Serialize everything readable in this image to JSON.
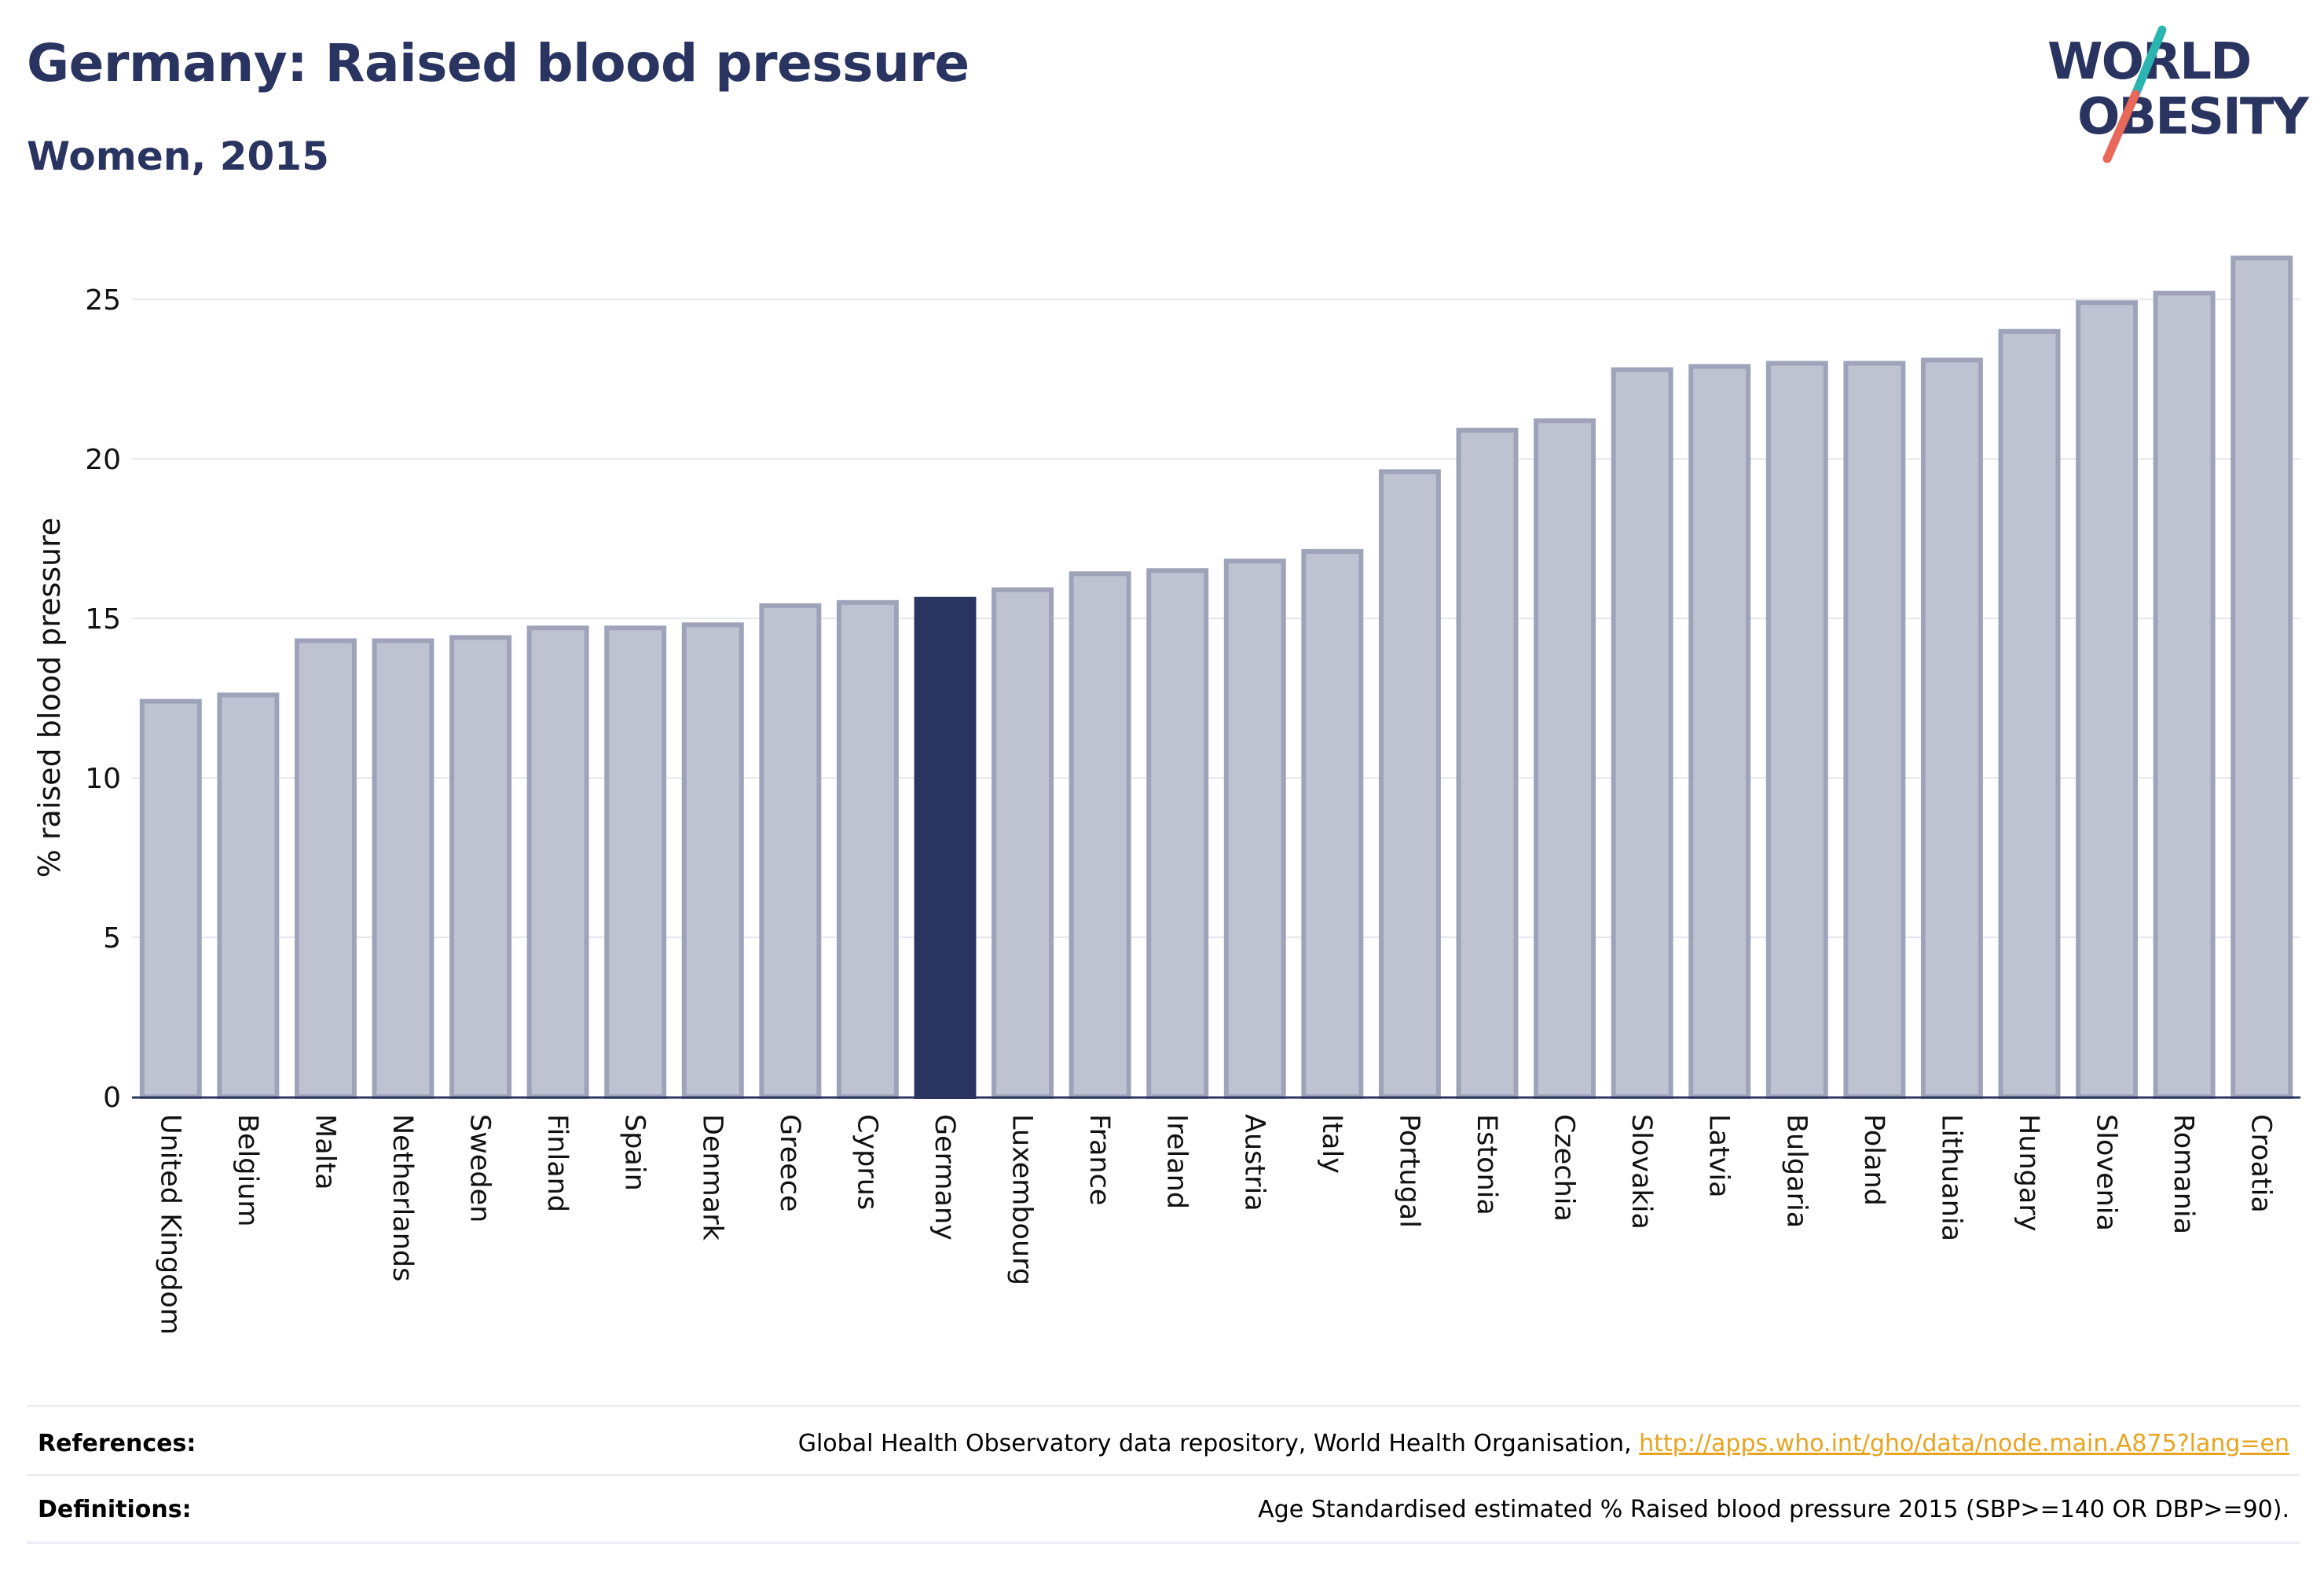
{
  "header": {
    "title": "Germany: Raised blood pressure",
    "subtitle": "Women, 2015"
  },
  "logo": {
    "line1": "WORLD",
    "line2": "OBESITY",
    "colors": {
      "text": "#2a3460",
      "slash_teal": "#2bb5b0",
      "slash_coral": "#e8685a"
    }
  },
  "colors": {
    "highlight_bar": "#2a3460",
    "default_bar_fill": "#bfc2d0",
    "default_bar_stroke": "#9ea3ba",
    "axis_text": "#111111",
    "grid": "#e6e7ee"
  },
  "chart_data": {
    "type": "bar",
    "ylabel": "% raised blood pressure",
    "ylim": [
      0,
      27
    ],
    "yticks": [
      0,
      5,
      10,
      15,
      20,
      25
    ],
    "grid": true,
    "highlight": "Germany",
    "categories": [
      "United Kingdom",
      "Belgium",
      "Malta",
      "Netherlands",
      "Sweden",
      "Finland",
      "Spain",
      "Denmark",
      "Greece",
      "Cyprus",
      "Germany",
      "Luxembourg",
      "France",
      "Ireland",
      "Austria",
      "Italy",
      "Portugal",
      "Estonia",
      "Czechia",
      "Slovakia",
      "Latvia",
      "Bulgaria",
      "Poland",
      "Lithuania",
      "Hungary",
      "Slovenia",
      "Romania",
      "Croatia"
    ],
    "values": [
      12.4,
      12.6,
      14.3,
      14.3,
      14.4,
      14.7,
      14.7,
      14.8,
      15.4,
      15.5,
      15.6,
      15.9,
      16.4,
      16.5,
      16.8,
      17.1,
      19.6,
      20.9,
      21.2,
      22.8,
      22.9,
      23.0,
      23.0,
      23.1,
      24.0,
      24.9,
      25.2,
      26.3
    ]
  },
  "footer": {
    "references_label": "References:",
    "references_text": "Global Health Observatory data repository, World Health Organisation, ",
    "references_link": "http://apps.who.int/gho/data/node.main.A875?lang=en",
    "definitions_label": "Definitions:",
    "definitions_text": "Age Standardised estimated % Raised blood pressure 2015 (SBP>=140 OR DBP>=90)."
  }
}
